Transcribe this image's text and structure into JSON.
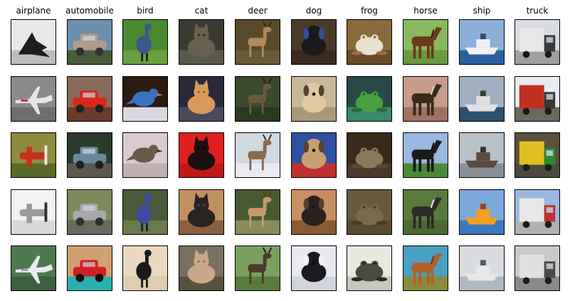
{
  "columns": [
    {
      "label": "airplane",
      "images": [
        {
          "subject": "plane-dark",
          "colors": {
            "bg": "#e8e8e8",
            "ground": "#bdbdbd",
            "subject": "#1e1e1e",
            "accent": "#555555"
          }
        },
        {
          "subject": "plane-jet",
          "colors": {
            "bg": "#8a8a8a",
            "ground": "#6e6e6e",
            "subject": "#e6e6ea",
            "accent": "#c03030"
          }
        },
        {
          "subject": "plane-prop",
          "colors": {
            "bg": "#8e8a40",
            "ground": "#5a6a28",
            "subject": "#c83020",
            "accent": "#e8e8e8"
          }
        },
        {
          "subject": "plane-prop",
          "colors": {
            "bg": "#f2f2f2",
            "ground": "#d8d8d8",
            "subject": "#9a9a9a",
            "accent": "#303030"
          }
        },
        {
          "subject": "plane-jet",
          "colors": {
            "bg": "#4e7a50",
            "ground": "#3c6040",
            "subject": "#e8ecee",
            "accent": "#9aa0a6"
          }
        }
      ]
    },
    {
      "label": "automobile",
      "images": [
        {
          "subject": "car",
          "colors": {
            "bg": "#6c8fb0",
            "ground": "#4a5a3a",
            "subject": "#b09a8a",
            "accent": "#303030"
          }
        },
        {
          "subject": "car",
          "colors": {
            "bg": "#8a6a5a",
            "ground": "#6a3a2a",
            "subject": "#d82818",
            "accent": "#202020"
          }
        },
        {
          "subject": "car",
          "colors": {
            "bg": "#2a3a2a",
            "ground": "#5a5a50",
            "subject": "#6a8a9a",
            "accent": "#202020"
          }
        },
        {
          "subject": "car",
          "colors": {
            "bg": "#7a8a5a",
            "ground": "#6a6a60",
            "subject": "#a8a8a8",
            "accent": "#303030"
          }
        },
        {
          "subject": "car",
          "colors": {
            "bg": "#d0a070",
            "ground": "#2ab0b0",
            "subject": "#d02020",
            "accent": "#101010"
          }
        }
      ]
    },
    {
      "label": "bird",
      "images": [
        {
          "subject": "bird-tall",
          "colors": {
            "bg": "#4a8a30",
            "ground": "#6aa040",
            "subject": "#3a5a8a",
            "accent": "#202030"
          }
        },
        {
          "subject": "bird",
          "colors": {
            "bg": "#2a1a10",
            "ground": "#d8d8e0",
            "subject": "#3a70c0",
            "accent": "#d08030"
          }
        },
        {
          "subject": "bird",
          "colors": {
            "bg": "#d8ccd0",
            "ground": "#c0b0b0",
            "subject": "#6a5a4a",
            "accent": "#3a3020"
          }
        },
        {
          "subject": "bird-tall",
          "colors": {
            "bg": "#4a5a3a",
            "ground": "#6a7a4a",
            "subject": "#3a4aa0",
            "accent": "#202030"
          }
        },
        {
          "subject": "bird-tall",
          "colors": {
            "bg": "#ead8c0",
            "ground": "#e0ccb0",
            "subject": "#1a1a1a",
            "accent": "#1a1a1a"
          }
        }
      ]
    },
    {
      "label": "cat",
      "images": [
        {
          "subject": "cat",
          "colors": {
            "bg": "#3a3a30",
            "ground": "#5a5a4a",
            "subject": "#6a6050",
            "accent": "#2a2a20"
          }
        },
        {
          "subject": "cat",
          "colors": {
            "bg": "#2a2a3a",
            "ground": "#4a4a5a",
            "subject": "#d89a5a",
            "accent": "#8a5a30"
          }
        },
        {
          "subject": "cat",
          "colors": {
            "bg": "#e02020",
            "ground": "#c01818",
            "subject": "#1a1010",
            "accent": "#000000"
          }
        },
        {
          "subject": "cat",
          "colors": {
            "bg": "#c09060",
            "ground": "#8a6040",
            "subject": "#2a2420",
            "accent": "#5a4a3a"
          }
        },
        {
          "subject": "cat",
          "colors": {
            "bg": "#7a7060",
            "ground": "#5a5040",
            "subject": "#c8a888",
            "accent": "#8a7060"
          }
        }
      ]
    },
    {
      "label": "deer",
      "images": [
        {
          "subject": "deer",
          "colors": {
            "bg": "#5a4a2a",
            "ground": "#6a5a3a",
            "subject": "#b08a5a",
            "accent": "#3a2a1a"
          }
        },
        {
          "subject": "deer",
          "colors": {
            "bg": "#3a4a2a",
            "ground": "#2a3a20",
            "subject": "#6a5a3a",
            "accent": "#2a2018"
          }
        },
        {
          "subject": "deer",
          "colors": {
            "bg": "#d0d8e0",
            "ground": "#e8ecf0",
            "subject": "#8a6a4a",
            "accent": "#3a2a1a"
          }
        },
        {
          "subject": "deer",
          "colors": {
            "bg": "#4a5a30",
            "ground": "#8a8a5a",
            "subject": "#c89a6a",
            "accent": "#5a3a20"
          }
        },
        {
          "subject": "deer",
          "colors": {
            "bg": "#7aa060",
            "ground": "#5a7a40",
            "subject": "#4a3a2a",
            "accent": "#2a1a10"
          }
        }
      ]
    },
    {
      "label": "dog",
      "images": [
        {
          "subject": "dog",
          "colors": {
            "bg": "#4a3a2a",
            "ground": "#3a2a20",
            "subject": "#1a1a1a",
            "accent": "#3050a0"
          }
        },
        {
          "subject": "dog",
          "colors": {
            "bg": "#c8b898",
            "ground": "#a89878",
            "subject": "#e0c8a0",
            "accent": "#5a4030"
          }
        },
        {
          "subject": "dog",
          "colors": {
            "bg": "#3050a0",
            "ground": "#c03030",
            "subject": "#c8a070",
            "accent": "#5a4030"
          }
        },
        {
          "subject": "dog",
          "colors": {
            "bg": "#c89060",
            "ground": "#8a5a30",
            "subject": "#2a2020",
            "accent": "#5a4030"
          }
        },
        {
          "subject": "dog",
          "colors": {
            "bg": "#e8eaf0",
            "ground": "#d0d4dc",
            "subject": "#1a1a20",
            "accent": "#f0f0f0"
          }
        }
      ]
    },
    {
      "label": "frog",
      "images": [
        {
          "subject": "frog",
          "colors": {
            "bg": "#8a6a3a",
            "ground": "#6a4a2a",
            "subject": "#e8e0d0",
            "accent": "#a07040"
          }
        },
        {
          "subject": "frog",
          "colors": {
            "bg": "#2a4a4a",
            "ground": "#3a8a6a",
            "subject": "#4aa040",
            "accent": "#2a6a30"
          }
        },
        {
          "subject": "frog",
          "colors": {
            "bg": "#3a2a1a",
            "ground": "#4a3a2a",
            "subject": "#8a7a5a",
            "accent": "#5a4a3a"
          }
        },
        {
          "subject": "frog",
          "colors": {
            "bg": "#6a5a3a",
            "ground": "#5a4a30",
            "subject": "#7a6a4a",
            "accent": "#4a3a2a"
          }
        },
        {
          "subject": "frog",
          "colors": {
            "bg": "#e8e8e0",
            "ground": "#c8c8c0",
            "subject": "#4a4a40",
            "accent": "#2a2a20"
          }
        }
      ]
    },
    {
      "label": "horse",
      "images": [
        {
          "subject": "horse",
          "colors": {
            "bg": "#8ab860",
            "ground": "#6a9a40",
            "subject": "#6a3a1a",
            "accent": "#2a1a0a"
          }
        },
        {
          "subject": "horse",
          "colors": {
            "bg": "#c89a8a",
            "ground": "#a07060",
            "subject": "#3a2a1a",
            "accent": "#e0d8d0"
          }
        },
        {
          "subject": "horse",
          "colors": {
            "bg": "#9ab8e0",
            "ground": "#4a8a3a",
            "subject": "#1a1a1a",
            "accent": "#0a0a0a"
          }
        },
        {
          "subject": "horse",
          "colors": {
            "bg": "#5a7a3a",
            "ground": "#4a6a30",
            "subject": "#2a2a2a",
            "accent": "#e8e8e8"
          }
        },
        {
          "subject": "horse",
          "colors": {
            "bg": "#4aa0c0",
            "ground": "#8a8a40",
            "subject": "#b0602a",
            "accent": "#6a3010"
          }
        }
      ]
    },
    {
      "label": "ship",
      "images": [
        {
          "subject": "ship",
          "colors": {
            "bg": "#8ab0d8",
            "ground": "#2a60a0",
            "subject": "#f0f0f0",
            "accent": "#3a4a6a"
          }
        },
        {
          "subject": "ship",
          "colors": {
            "bg": "#a0b0c0",
            "ground": "#2a5070",
            "subject": "#e0e0e0",
            "accent": "#3a3a3a"
          }
        },
        {
          "subject": "ship",
          "colors": {
            "bg": "#b8c0c8",
            "ground": "#8a9098",
            "subject": "#5a4a40",
            "accent": "#3a3030"
          }
        },
        {
          "subject": "ship",
          "colors": {
            "bg": "#7aa8d8",
            "ground": "#3a78c0",
            "subject": "#f0a020",
            "accent": "#a04020"
          }
        },
        {
          "subject": "ship",
          "colors": {
            "bg": "#d8dce0",
            "ground": "#b0b8c0",
            "subject": "#e8e8e8",
            "accent": "#5a5a5a"
          }
        }
      ]
    },
    {
      "label": "truck",
      "images": [
        {
          "subject": "truck",
          "colors": {
            "bg": "#d8dce0",
            "ground": "#a0a0a0",
            "subject": "#e8e8e8",
            "accent": "#3a3a3a"
          }
        },
        {
          "subject": "truck",
          "colors": {
            "bg": "#e8ecf0",
            "ground": "#6a6a60",
            "subject": "#c03020",
            "accent": "#3a3a30"
          }
        },
        {
          "subject": "truck",
          "colors": {
            "bg": "#5a5040",
            "ground": "#4a4a40",
            "subject": "#e0c020",
            "accent": "#2a8a30"
          }
        },
        {
          "subject": "truck",
          "colors": {
            "bg": "#9ab8e0",
            "ground": "#b0b0b0",
            "subject": "#e8e8e8",
            "accent": "#c03030"
          }
        },
        {
          "subject": "truck",
          "colors": {
            "bg": "#c8c8c8",
            "ground": "#8a8a8a",
            "subject": "#e0e0e0",
            "accent": "#4a4a4a"
          }
        }
      ]
    }
  ]
}
